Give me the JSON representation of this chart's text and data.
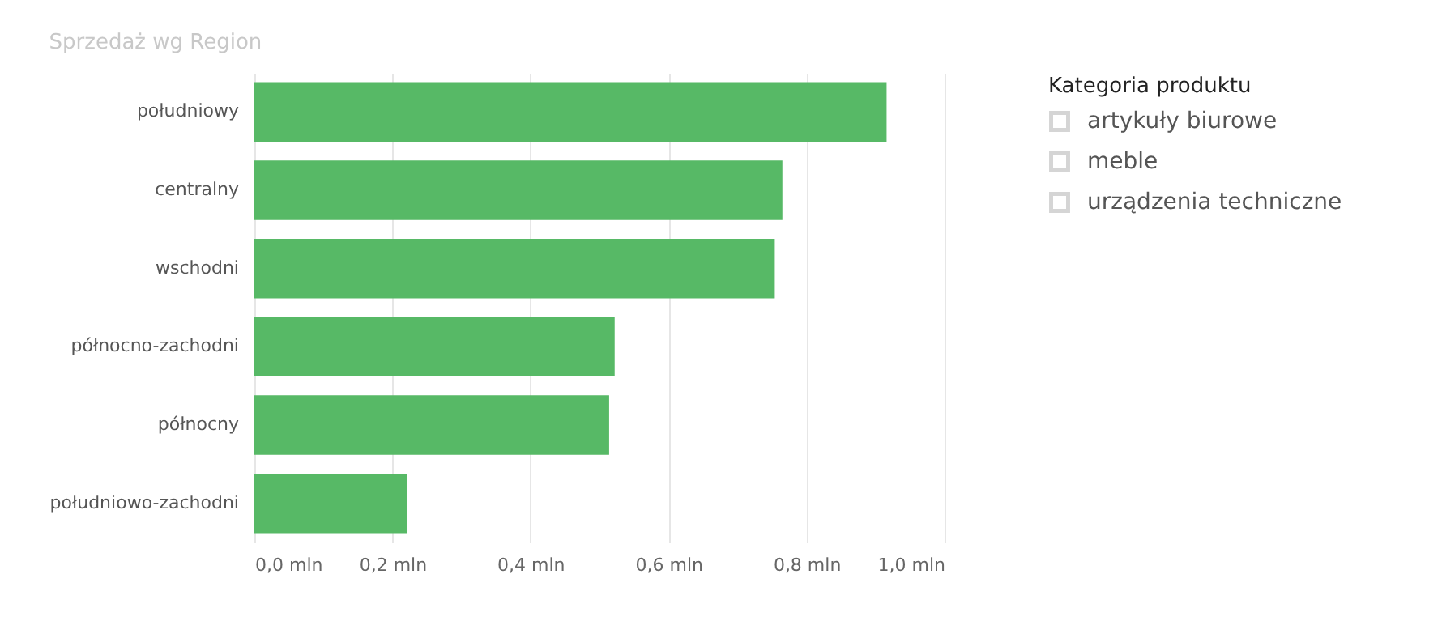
{
  "chart_data": {
    "type": "bar",
    "orientation": "horizontal",
    "title": "Sprzedaż wg Region",
    "categories": [
      "południowy",
      "centralny",
      "wschodni",
      "północno-zachodni",
      "północny",
      "południowo-zachodni"
    ],
    "values": [
      0.916,
      0.765,
      0.754,
      0.522,
      0.514,
      0.221
    ],
    "color": "#57b966",
    "xlim": [
      0,
      1.0
    ],
    "xticks": [
      {
        "value": 0,
        "label": "0,0 mln"
      },
      {
        "value": 0.2,
        "label": "0,2 mln"
      },
      {
        "value": 0.4,
        "label": "0,4 mln"
      },
      {
        "value": 0.6,
        "label": "0,6 mln"
      },
      {
        "value": 0.8,
        "label": "0,8 mln"
      },
      {
        "value": 1.0,
        "label": "1,0 mln"
      }
    ],
    "grid": "x",
    "legend_title": "Kategoria produktu",
    "annotations": [
      "artykuły biurowe",
      "meble",
      "urządzenia techniczne"
    ]
  }
}
